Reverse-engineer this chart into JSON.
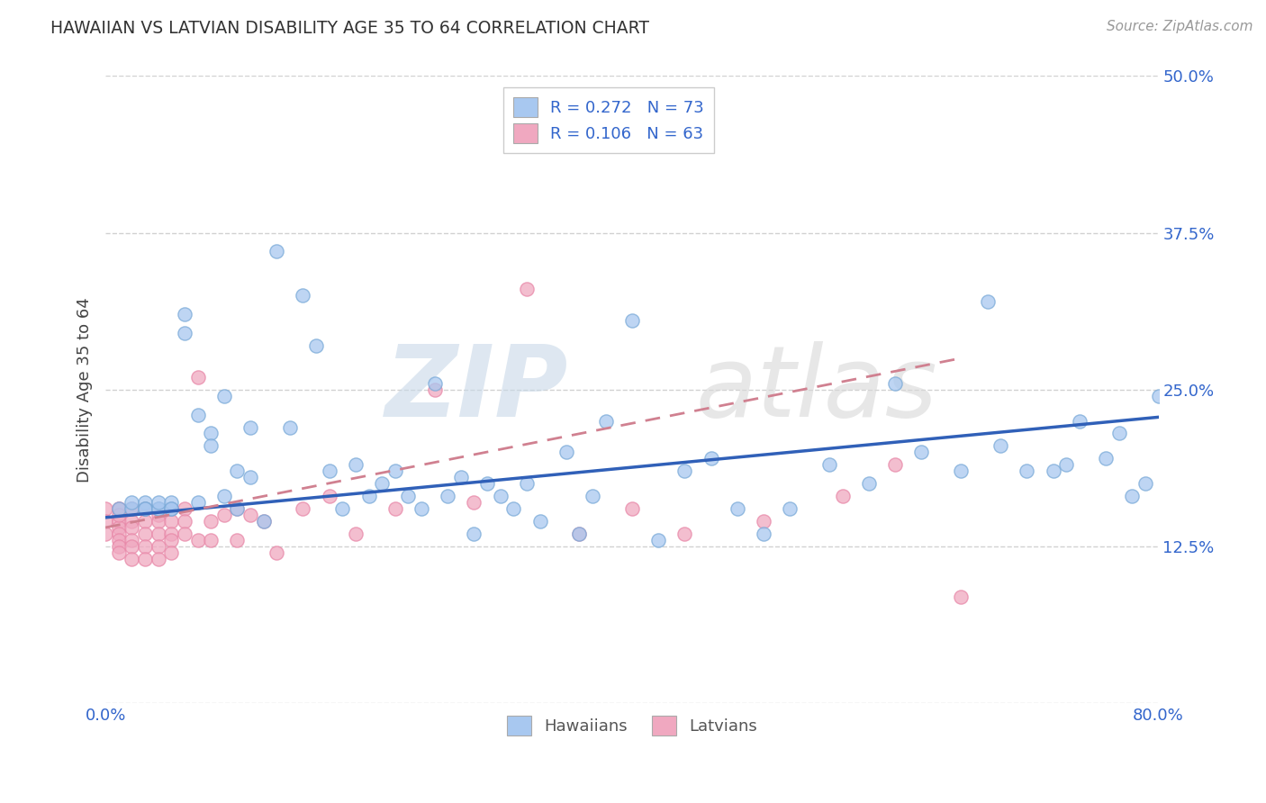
{
  "title": "HAWAIIAN VS LATVIAN DISABILITY AGE 35 TO 64 CORRELATION CHART",
  "source": "Source: ZipAtlas.com",
  "ylabel": "Disability Age 35 to 64",
  "xlim": [
    0.0,
    0.8
  ],
  "ylim": [
    0.0,
    0.5
  ],
  "xticks": [
    0.0,
    0.2,
    0.4,
    0.6,
    0.8
  ],
  "xticklabels": [
    "0.0%",
    "",
    "",
    "",
    "80.0%"
  ],
  "yticks": [
    0.0,
    0.125,
    0.25,
    0.375,
    0.5
  ],
  "yticklabels": [
    "",
    "12.5%",
    "25.0%",
    "37.5%",
    "50.0%"
  ],
  "hawaiian_R": 0.272,
  "hawaiian_N": 73,
  "latvian_R": 0.106,
  "latvian_N": 63,
  "hawaiian_color": "#a8c8f0",
  "latvian_color": "#f0a8c0",
  "hawaiian_edge_color": "#7aaad8",
  "latvian_edge_color": "#e888a8",
  "hawaiian_line_color": "#3060b8",
  "latvian_line_color": "#d08090",
  "grid_color": "#cccccc",
  "background_color": "#ffffff",
  "watermark_color": "#e0e8f0",
  "hawaiian_x": [
    0.01,
    0.02,
    0.02,
    0.03,
    0.03,
    0.03,
    0.04,
    0.04,
    0.04,
    0.05,
    0.05,
    0.05,
    0.06,
    0.06,
    0.07,
    0.07,
    0.08,
    0.08,
    0.09,
    0.09,
    0.1,
    0.1,
    0.11,
    0.11,
    0.12,
    0.13,
    0.14,
    0.15,
    0.16,
    0.17,
    0.18,
    0.19,
    0.2,
    0.21,
    0.22,
    0.23,
    0.24,
    0.25,
    0.26,
    0.27,
    0.28,
    0.29,
    0.3,
    0.31,
    0.32,
    0.33,
    0.35,
    0.36,
    0.37,
    0.38,
    0.4,
    0.42,
    0.44,
    0.46,
    0.48,
    0.5,
    0.52,
    0.55,
    0.58,
    0.6,
    0.62,
    0.65,
    0.68,
    0.7,
    0.72,
    0.74,
    0.76,
    0.77,
    0.78,
    0.79,
    0.8,
    0.73,
    0.67
  ],
  "hawaiian_y": [
    0.155,
    0.155,
    0.16,
    0.16,
    0.155,
    0.155,
    0.155,
    0.155,
    0.16,
    0.155,
    0.16,
    0.155,
    0.295,
    0.31,
    0.16,
    0.23,
    0.215,
    0.205,
    0.245,
    0.165,
    0.185,
    0.155,
    0.18,
    0.22,
    0.145,
    0.36,
    0.22,
    0.325,
    0.285,
    0.185,
    0.155,
    0.19,
    0.165,
    0.175,
    0.185,
    0.165,
    0.155,
    0.255,
    0.165,
    0.18,
    0.135,
    0.175,
    0.165,
    0.155,
    0.175,
    0.145,
    0.2,
    0.135,
    0.165,
    0.225,
    0.305,
    0.13,
    0.185,
    0.195,
    0.155,
    0.135,
    0.155,
    0.19,
    0.175,
    0.255,
    0.2,
    0.185,
    0.205,
    0.185,
    0.185,
    0.225,
    0.195,
    0.215,
    0.165,
    0.175,
    0.245,
    0.19,
    0.32
  ],
  "latvian_x": [
    0.0,
    0.0,
    0.0,
    0.01,
    0.01,
    0.01,
    0.01,
    0.01,
    0.01,
    0.01,
    0.01,
    0.01,
    0.02,
    0.02,
    0.02,
    0.02,
    0.02,
    0.02,
    0.02,
    0.03,
    0.03,
    0.03,
    0.03,
    0.03,
    0.03,
    0.04,
    0.04,
    0.04,
    0.04,
    0.04,
    0.04,
    0.05,
    0.05,
    0.05,
    0.05,
    0.05,
    0.06,
    0.06,
    0.06,
    0.07,
    0.07,
    0.08,
    0.08,
    0.09,
    0.1,
    0.1,
    0.11,
    0.12,
    0.13,
    0.15,
    0.17,
    0.19,
    0.22,
    0.25,
    0.28,
    0.32,
    0.36,
    0.4,
    0.44,
    0.5,
    0.56,
    0.6,
    0.65
  ],
  "latvian_y": [
    0.155,
    0.145,
    0.135,
    0.155,
    0.145,
    0.14,
    0.135,
    0.155,
    0.15,
    0.13,
    0.125,
    0.12,
    0.155,
    0.145,
    0.155,
    0.14,
    0.13,
    0.125,
    0.115,
    0.155,
    0.155,
    0.145,
    0.135,
    0.125,
    0.115,
    0.155,
    0.15,
    0.145,
    0.135,
    0.125,
    0.115,
    0.155,
    0.145,
    0.135,
    0.13,
    0.12,
    0.155,
    0.145,
    0.135,
    0.26,
    0.13,
    0.145,
    0.13,
    0.15,
    0.155,
    0.13,
    0.15,
    0.145,
    0.12,
    0.155,
    0.165,
    0.135,
    0.155,
    0.25,
    0.16,
    0.33,
    0.135,
    0.155,
    0.135,
    0.145,
    0.165,
    0.19,
    0.085
  ],
  "hawaiian_line_x": [
    0.0,
    0.8
  ],
  "hawaiian_line_y": [
    0.148,
    0.228
  ],
  "latvian_line_x": [
    0.0,
    0.65
  ],
  "latvian_line_y": [
    0.14,
    0.275
  ]
}
